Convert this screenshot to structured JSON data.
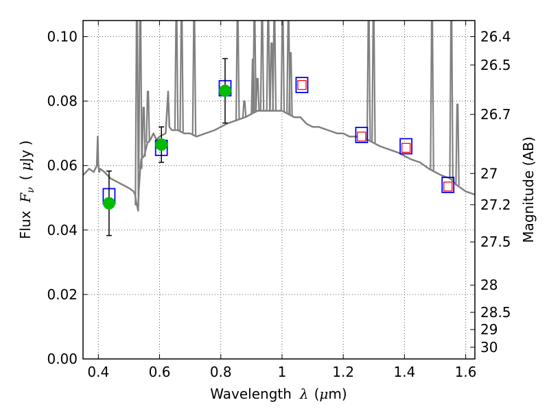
{
  "chart_data": {
    "type": "line",
    "xlabel": {
      "prefix": "Wavelength",
      "symbol": "λ",
      "unit_open": "(",
      "unit_mu": "μ",
      "unit_rest": "m)"
    },
    "ylabel": {
      "prefix": "Flux",
      "symbol": "F",
      "subscript": "ν",
      "unit_open": "(",
      "unit_mu": "μ",
      "unit_rest": "Jy",
      "unit_close": ")"
    },
    "y2label": "Magnitude (AB)",
    "xlim": [
      0.35,
      1.63
    ],
    "ylim": [
      0.0,
      0.105
    ],
    "grid": true,
    "x_ticks": [
      {
        "value": 0.4,
        "label": "0.4"
      },
      {
        "value": 0.6,
        "label": "0.6"
      },
      {
        "value": 0.8,
        "label": "0.8"
      },
      {
        "value": 1.0,
        "label": "1"
      },
      {
        "value": 1.2,
        "label": "1.2"
      },
      {
        "value": 1.4,
        "label": "1.4"
      },
      {
        "value": 1.6,
        "label": "1.6"
      }
    ],
    "y_ticks": [
      {
        "value": 0.0,
        "label": "0.00"
      },
      {
        "value": 0.02,
        "label": "0.02"
      },
      {
        "value": 0.04,
        "label": "0.04"
      },
      {
        "value": 0.06,
        "label": "0.06"
      },
      {
        "value": 0.08,
        "label": "0.08"
      },
      {
        "value": 0.1,
        "label": "0.10"
      }
    ],
    "y2_ticks": [
      {
        "value": 26.4,
        "label": "26.4"
      },
      {
        "value": 26.5,
        "label": "26.5"
      },
      {
        "value": 26.7,
        "label": "26.7"
      },
      {
        "value": 27.0,
        "label": "27"
      },
      {
        "value": 27.2,
        "label": "27.2"
      },
      {
        "value": 27.5,
        "label": "27.5"
      },
      {
        "value": 28.0,
        "label": "28"
      },
      {
        "value": 28.5,
        "label": "28.5"
      },
      {
        "value": 29.0,
        "label": "29"
      },
      {
        "value": 30.0,
        "label": "30"
      }
    ],
    "colors": {
      "spectrum": "#808080",
      "model_box": "#0000ff",
      "upper_limit_box": "#ff0000",
      "detection": "#00bb00",
      "errorbar": "#000000",
      "grid": "#555555"
    },
    "series": [
      {
        "kind": "spectrum",
        "x": [
          0.35,
          0.37,
          0.385,
          0.395,
          0.398,
          0.4,
          0.403,
          0.406,
          0.42,
          0.44,
          0.46,
          0.48,
          0.5,
          0.515,
          0.52,
          0.525,
          0.528,
          0.53,
          0.532,
          0.536,
          0.54,
          0.55,
          0.56,
          0.57,
          0.58,
          0.585,
          0.59,
          0.6,
          0.62,
          0.628,
          0.632,
          0.64,
          0.66,
          0.68,
          0.7,
          0.72,
          0.75,
          0.78,
          0.8,
          0.82,
          0.85,
          0.88,
          0.9,
          0.92,
          0.95,
          0.97,
          1.0,
          1.02,
          1.04,
          1.06,
          1.08,
          1.1,
          1.12,
          1.15,
          1.18,
          1.2,
          1.22,
          1.25,
          1.28,
          1.3,
          1.32,
          1.35,
          1.38,
          1.4,
          1.42,
          1.45,
          1.48,
          1.5,
          1.52,
          1.55,
          1.57,
          1.6,
          1.63
        ],
        "y": [
          0.057,
          0.059,
          0.058,
          0.06,
          0.069,
          0.06,
          0.058,
          0.059,
          0.058,
          0.056,
          0.055,
          0.054,
          0.053,
          0.052,
          0.051,
          0.048,
          0.047,
          0.046,
          0.052,
          0.058,
          0.062,
          0.063,
          0.067,
          0.068,
          0.07,
          0.069,
          0.068,
          0.069,
          0.07,
          0.083,
          0.072,
          0.071,
          0.071,
          0.07,
          0.07,
          0.069,
          0.07,
          0.071,
          0.072,
          0.073,
          0.074,
          0.075,
          0.076,
          0.077,
          0.077,
          0.077,
          0.077,
          0.076,
          0.075,
          0.075,
          0.073,
          0.072,
          0.072,
          0.071,
          0.07,
          0.07,
          0.069,
          0.069,
          0.068,
          0.067,
          0.066,
          0.065,
          0.064,
          0.063,
          0.062,
          0.061,
          0.059,
          0.058,
          0.057,
          0.056,
          0.054,
          0.052,
          0.051
        ]
      },
      {
        "kind": "emission_lines",
        "lines": [
          {
            "x": 0.526,
            "peak": 0.105
          },
          {
            "x": 0.537,
            "peak": 0.105
          },
          {
            "x": 0.548,
            "peak": 0.078
          },
          {
            "x": 0.562,
            "peak": 0.083
          },
          {
            "x": 0.655,
            "peak": 0.105
          },
          {
            "x": 0.672,
            "peak": 0.105
          },
          {
            "x": 0.713,
            "peak": 0.105
          },
          {
            "x": 0.855,
            "peak": 0.105
          },
          {
            "x": 0.877,
            "peak": 0.08
          },
          {
            "x": 0.905,
            "peak": 0.093
          },
          {
            "x": 0.91,
            "peak": 0.105
          },
          {
            "x": 0.92,
            "peak": 0.087
          },
          {
            "x": 0.935,
            "peak": 0.105
          },
          {
            "x": 0.955,
            "peak": 0.105
          },
          {
            "x": 0.966,
            "peak": 0.098
          },
          {
            "x": 0.975,
            "peak": 0.105
          },
          {
            "x": 1.002,
            "peak": 0.105
          },
          {
            "x": 1.021,
            "peak": 0.105
          },
          {
            "x": 1.028,
            "peak": 0.095
          },
          {
            "x": 1.283,
            "peak": 0.105
          },
          {
            "x": 1.299,
            "peak": 0.105
          },
          {
            "x": 1.49,
            "peak": 0.105
          },
          {
            "x": 1.553,
            "peak": 0.105
          },
          {
            "x": 1.573,
            "peak": 0.079
          }
        ]
      },
      {
        "kind": "model_photometry",
        "points": [
          {
            "x": 0.435,
            "y": 0.0505
          },
          {
            "x": 0.606,
            "y": 0.0655
          },
          {
            "x": 0.814,
            "y": 0.084
          },
          {
            "x": 1.065,
            "y": 0.085
          },
          {
            "x": 1.26,
            "y": 0.0695
          },
          {
            "x": 1.405,
            "y": 0.066
          },
          {
            "x": 1.542,
            "y": 0.054
          }
        ]
      },
      {
        "kind": "observed_photometry",
        "points": [
          {
            "x": 0.435,
            "y": 0.0483,
            "err": 0.01
          },
          {
            "x": 0.606,
            "y": 0.0665,
            "err": 0.0055
          },
          {
            "x": 0.814,
            "y": 0.0832,
            "err": 0.01
          }
        ]
      },
      {
        "kind": "upper_limits",
        "points": [
          {
            "x": 1.065,
            "y": 0.085
          },
          {
            "x": 1.26,
            "y": 0.069
          },
          {
            "x": 1.405,
            "y": 0.0655
          },
          {
            "x": 1.542,
            "y": 0.0535
          }
        ]
      }
    ]
  }
}
